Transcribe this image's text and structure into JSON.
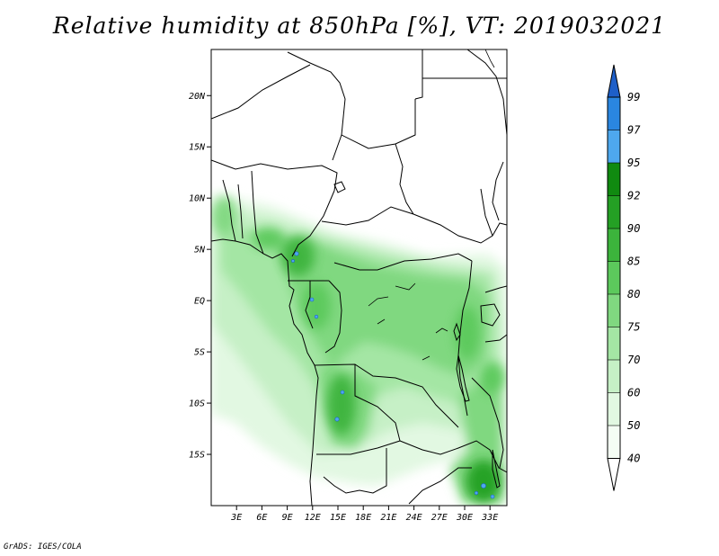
{
  "title": "Relative humidity at 850hPa [%], VT: 2019032021",
  "credit": "GrADS: IGES/COLA",
  "map": {
    "lat_labels": [
      "20N",
      "15N",
      "10N",
      "5N",
      "EQ",
      "5S",
      "10S",
      "15S"
    ],
    "lon_labels": [
      "3E",
      "6E",
      "9E",
      "12E",
      "15E",
      "18E",
      "21E",
      "24E",
      "27E",
      "30E",
      "33E"
    ],
    "lat_range": [
      -20,
      24.5
    ],
    "lon_range": [
      0,
      35
    ]
  },
  "colorbar": {
    "levels": [
      "99",
      "97",
      "95",
      "92",
      "90",
      "85",
      "80",
      "75",
      "70",
      "60",
      "50",
      "40"
    ],
    "colors": [
      "#1e5fc8",
      "#2a86e0",
      "#4ea8ee",
      "#108a10",
      "#24a024",
      "#3cb43c",
      "#5cc95c",
      "#80d880",
      "#a4e6a4",
      "#c6f0c6",
      "#e2f8e2",
      "#f4fdf4"
    ]
  },
  "colors": {
    "frame": "#000000",
    "border": "#000000"
  }
}
